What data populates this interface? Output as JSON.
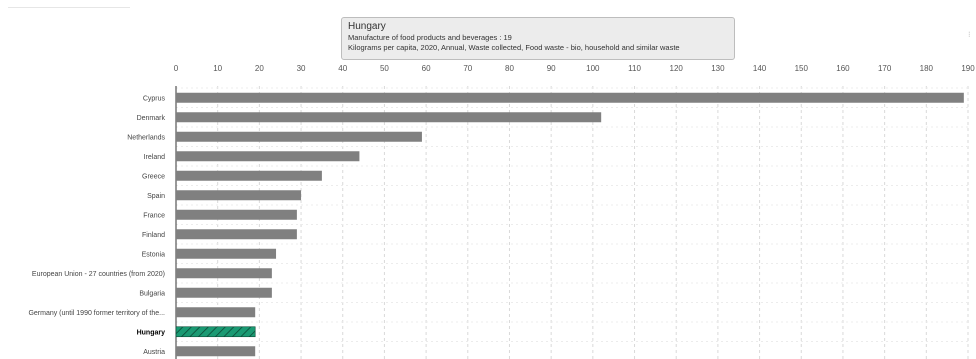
{
  "page": {
    "title_fragment": "...p... ...ro... ...p... ...g... ...(...) ..."
  },
  "tooltip": {
    "country": "Hungary",
    "line1": "Manufacture of food products and beverages : 19",
    "line2": "Kilograms per capita, 2020, Annual, Waste collected, Food waste - bio, household and similar waste"
  },
  "chart_data": {
    "type": "bar",
    "orientation": "horizontal",
    "categories": [
      "Cyprus",
      "Denmark",
      "Netherlands",
      "Ireland",
      "Greece",
      "Spain",
      "France",
      "Finland",
      "Estonia",
      "European Union - 27 countries (from 2020)",
      "Bulgaria",
      "Germany (until 1990 former territory of the...",
      "Hungary",
      "Austria"
    ],
    "values": [
      189,
      102,
      59,
      44,
      35,
      30,
      29,
      29,
      24,
      23,
      23,
      19,
      19,
      19
    ],
    "highlight": "Hungary",
    "xlim": [
      0,
      190
    ],
    "xticks": [
      0,
      10,
      20,
      30,
      40,
      50,
      60,
      70,
      80,
      90,
      100,
      110,
      120,
      130,
      140,
      150,
      160,
      170,
      180,
      190
    ],
    "grid": true,
    "colors": {
      "bar": "#808080",
      "highlight": "#1a9a73",
      "grid": "#d9d9d9"
    }
  }
}
